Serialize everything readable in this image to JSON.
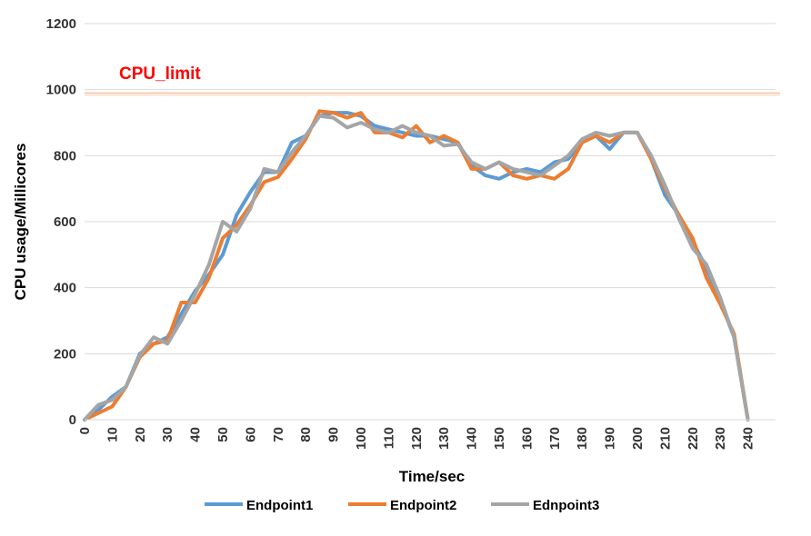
{
  "chart_data": {
    "type": "line",
    "title": "",
    "xlabel": "Time/sec",
    "ylabel": "CPU usage/Millicores",
    "xlim": [
      0,
      250
    ],
    "ylim": [
      0,
      1200
    ],
    "x_ticks": [
      0,
      10,
      20,
      30,
      40,
      50,
      60,
      70,
      80,
      90,
      100,
      110,
      120,
      130,
      140,
      150,
      160,
      170,
      180,
      190,
      200,
      210,
      220,
      230,
      240
    ],
    "y_ticks": [
      0,
      200,
      400,
      600,
      800,
      1000,
      1200
    ],
    "grid": "horizontal",
    "legend_position": "bottom",
    "x": [
      0,
      5,
      10,
      15,
      20,
      25,
      30,
      35,
      40,
      45,
      50,
      55,
      60,
      65,
      70,
      75,
      80,
      85,
      90,
      95,
      100,
      105,
      110,
      115,
      120,
      125,
      130,
      135,
      140,
      145,
      150,
      155,
      160,
      165,
      170,
      175,
      180,
      185,
      190,
      195,
      200,
      205,
      210,
      215,
      220,
      225,
      230,
      235,
      240
    ],
    "series": [
      {
        "name": "Endpoint1",
        "color": "#5B9BD5",
        "values": [
          0,
          30,
          70,
          100,
          200,
          230,
          250,
          320,
          390,
          440,
          500,
          620,
          690,
          750,
          750,
          840,
          860,
          920,
          930,
          930,
          920,
          890,
          880,
          870,
          860,
          860,
          850,
          840,
          770,
          740,
          730,
          750,
          760,
          750,
          780,
          790,
          840,
          860,
          820,
          870,
          870,
          790,
          680,
          620,
          540,
          460,
          360,
          250,
          0
        ]
      },
      {
        "name": "Endpoint2",
        "color": "#ED7D31",
        "values": [
          0,
          20,
          40,
          100,
          190,
          230,
          240,
          355,
          355,
          430,
          550,
          590,
          650,
          720,
          735,
          790,
          850,
          935,
          930,
          915,
          930,
          870,
          870,
          855,
          890,
          840,
          860,
          840,
          760,
          760,
          780,
          740,
          730,
          740,
          730,
          760,
          840,
          860,
          840,
          870,
          870,
          790,
          700,
          620,
          550,
          430,
          350,
          260,
          0
        ]
      },
      {
        "name": "Ednpoint3",
        "color": "#A5A5A5",
        "values": [
          0,
          45,
          60,
          100,
          195,
          250,
          230,
          300,
          380,
          470,
          600,
          570,
          640,
          760,
          750,
          810,
          860,
          920,
          915,
          885,
          900,
          880,
          870,
          890,
          870,
          860,
          830,
          835,
          780,
          760,
          780,
          760,
          750,
          740,
          770,
          800,
          850,
          870,
          860,
          870,
          870,
          800,
          710,
          610,
          520,
          470,
          370,
          250,
          0
        ]
      }
    ],
    "annotations": [
      {
        "text": "CPU_limit",
        "y": 990,
        "color": "#FF0000",
        "line_color": "#F4B183"
      }
    ]
  }
}
